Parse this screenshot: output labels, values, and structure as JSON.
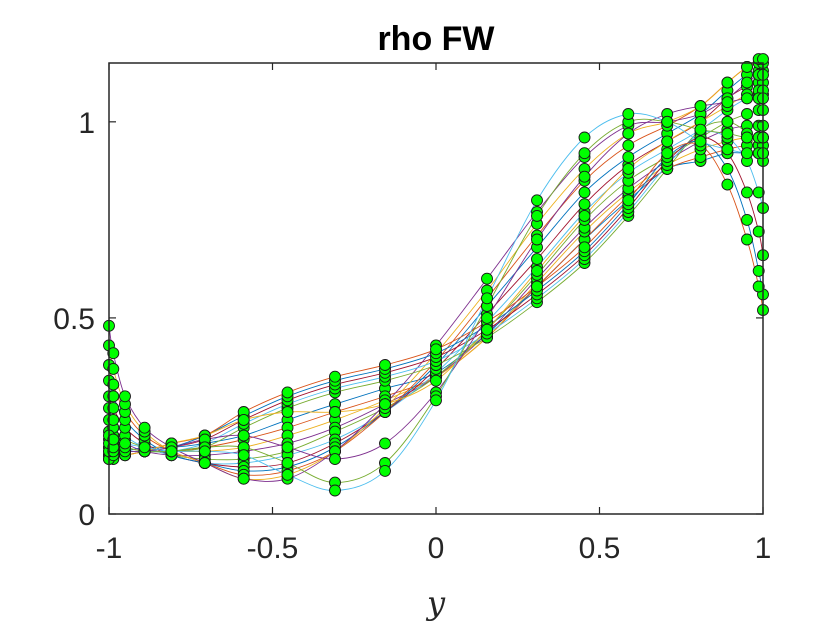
{
  "chart_data": {
    "type": "line",
    "title": "rho FW",
    "xlabel": "y",
    "ylabel": "",
    "xlim": [
      -1,
      1
    ],
    "ylim": [
      0,
      1.15
    ],
    "xticks": [
      -1,
      -0.5,
      0,
      0.5,
      1
    ],
    "xtick_labels": [
      "-1",
      "-0.5",
      "0",
      "0.5",
      "1"
    ],
    "yticks": [
      0,
      0.5,
      1
    ],
    "ytick_labels": [
      "0",
      "0.5",
      "1"
    ],
    "grid": false,
    "legend": "none",
    "node_x": [
      -1,
      -0.987,
      -0.951,
      -0.891,
      -0.809,
      -0.707,
      -0.588,
      -0.454,
      -0.309,
      -0.156,
      0,
      0.156,
      0.309,
      0.454,
      0.588,
      0.707,
      0.809,
      0.891,
      0.951,
      0.987,
      1
    ],
    "series": [
      {
        "values": [
          0.15,
          0.16,
          0.16,
          0.17,
          0.17,
          0.18,
          0.2,
          0.24,
          0.28,
          0.32,
          0.36,
          0.46,
          0.58,
          0.7,
          0.8,
          0.88,
          0.9,
          0.92,
          0.92,
          0.92,
          0.92
        ]
      },
      {
        "values": [
          0.17,
          0.17,
          0.16,
          0.16,
          0.16,
          0.17,
          0.19,
          0.22,
          0.26,
          0.3,
          0.35,
          0.45,
          0.58,
          0.7,
          0.81,
          0.88,
          0.91,
          0.93,
          0.94,
          0.94,
          0.94
        ]
      },
      {
        "values": [
          0.19,
          0.18,
          0.17,
          0.16,
          0.16,
          0.16,
          0.17,
          0.2,
          0.24,
          0.29,
          0.35,
          0.45,
          0.59,
          0.72,
          0.82,
          0.89,
          0.93,
          0.95,
          0.96,
          0.96,
          0.96
        ]
      },
      {
        "values": [
          0.21,
          0.2,
          0.18,
          0.16,
          0.15,
          0.15,
          0.16,
          0.18,
          0.22,
          0.28,
          0.35,
          0.46,
          0.6,
          0.73,
          0.83,
          0.9,
          0.95,
          0.98,
          0.99,
          0.99,
          0.99
        ]
      },
      {
        "values": [
          0.24,
          0.22,
          0.19,
          0.17,
          0.15,
          0.14,
          0.14,
          0.16,
          0.21,
          0.27,
          0.35,
          0.47,
          0.61,
          0.75,
          0.85,
          0.91,
          0.96,
          1.0,
          1.02,
          1.03,
          1.03
        ]
      },
      {
        "values": [
          0.27,
          0.24,
          0.2,
          0.17,
          0.15,
          0.13,
          0.13,
          0.15,
          0.19,
          0.26,
          0.36,
          0.49,
          0.63,
          0.77,
          0.87,
          0.93,
          0.98,
          1.03,
          1.06,
          1.07,
          1.07
        ]
      },
      {
        "values": [
          0.3,
          0.27,
          0.22,
          0.18,
          0.15,
          0.13,
          0.12,
          0.13,
          0.18,
          0.26,
          0.37,
          0.51,
          0.65,
          0.79,
          0.89,
          0.95,
          1.0,
          1.06,
          1.09,
          1.1,
          1.1
        ]
      },
      {
        "values": [
          0.34,
          0.3,
          0.24,
          0.19,
          0.15,
          0.13,
          0.11,
          0.12,
          0.17,
          0.26,
          0.38,
          0.53,
          0.68,
          0.82,
          0.91,
          0.97,
          1.02,
          1.08,
          1.12,
          1.13,
          1.13
        ]
      },
      {
        "values": [
          0.38,
          0.33,
          0.26,
          0.2,
          0.16,
          0.13,
          0.1,
          0.11,
          0.16,
          0.26,
          0.39,
          0.55,
          0.71,
          0.85,
          0.94,
          0.99,
          1.04,
          1.1,
          1.14,
          1.15,
          1.15
        ]
      },
      {
        "values": [
          0.43,
          0.37,
          0.28,
          0.21,
          0.16,
          0.13,
          0.09,
          0.1,
          0.16,
          0.27,
          0.41,
          0.57,
          0.74,
          0.88,
          0.97,
          1.0,
          1.04,
          1.1,
          1.14,
          1.16,
          1.16
        ]
      },
      {
        "values": [
          0.48,
          0.41,
          0.3,
          0.22,
          0.17,
          0.13,
          0.09,
          0.09,
          0.16,
          0.28,
          0.43,
          0.6,
          0.77,
          0.91,
          0.99,
          1.0,
          1.02,
          1.06,
          1.1,
          1.12,
          1.12
        ]
      },
      {
        "values": [
          0.17,
          0.17,
          0.16,
          0.16,
          0.16,
          0.17,
          0.22,
          0.27,
          0.31,
          0.34,
          0.38,
          0.45,
          0.54,
          0.64,
          0.76,
          0.88,
          0.98,
          1.0,
          0.97,
          0.92,
          0.9
        ]
      },
      {
        "values": [
          0.16,
          0.16,
          0.16,
          0.16,
          0.16,
          0.18,
          0.23,
          0.28,
          0.32,
          0.35,
          0.39,
          0.46,
          0.55,
          0.65,
          0.77,
          0.89,
          0.97,
          0.96,
          0.9,
          0.82,
          0.78
        ]
      },
      {
        "values": [
          0.15,
          0.15,
          0.15,
          0.16,
          0.17,
          0.19,
          0.24,
          0.29,
          0.33,
          0.36,
          0.4,
          0.47,
          0.56,
          0.66,
          0.78,
          0.9,
          0.96,
          0.92,
          0.82,
          0.72,
          0.66
        ]
      },
      {
        "values": [
          0.15,
          0.15,
          0.15,
          0.16,
          0.17,
          0.2,
          0.25,
          0.3,
          0.34,
          0.37,
          0.41,
          0.48,
          0.57,
          0.67,
          0.79,
          0.91,
          0.95,
          0.88,
          0.75,
          0.62,
          0.56
        ]
      },
      {
        "values": [
          0.14,
          0.14,
          0.15,
          0.16,
          0.18,
          0.2,
          0.26,
          0.31,
          0.35,
          0.38,
          0.42,
          0.49,
          0.58,
          0.68,
          0.8,
          0.92,
          0.94,
          0.84,
          0.7,
          0.58,
          0.52
        ]
      },
      {
        "values": [
          0.14,
          0.15,
          0.15,
          0.16,
          0.18,
          0.2,
          0.24,
          0.26,
          0.26,
          0.28,
          0.34,
          0.47,
          0.62,
          0.76,
          0.88,
          0.95,
          1.0,
          1.04,
          1.07,
          1.08,
          1.08
        ]
      },
      {
        "values": [
          0.16,
          0.16,
          0.16,
          0.16,
          0.17,
          0.19,
          0.2,
          0.17,
          0.14,
          0.18,
          0.31,
          0.5,
          0.7,
          0.86,
          0.97,
          1.02,
          1.04,
          1.05,
          1.06,
          1.06,
          1.06
        ]
      },
      {
        "values": [
          0.18,
          0.17,
          0.17,
          0.16,
          0.16,
          0.17,
          0.17,
          0.13,
          0.08,
          0.13,
          0.3,
          0.53,
          0.76,
          0.92,
          1.0,
          1.0,
          0.98,
          0.97,
          0.96,
          0.96,
          0.96
        ]
      },
      {
        "values": [
          0.2,
          0.19,
          0.18,
          0.17,
          0.16,
          0.16,
          0.15,
          0.1,
          0.06,
          0.11,
          0.29,
          0.55,
          0.8,
          0.96,
          1.02,
          1.0,
          0.95,
          0.93,
          0.92,
          0.92,
          0.92
        ]
      }
    ]
  }
}
